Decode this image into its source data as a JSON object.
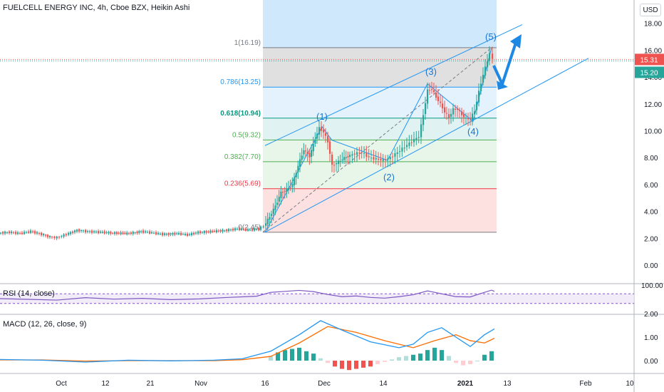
{
  "title": "FUELCELL ENERGY INC, 4h, Cboe BZX, Heikin Ashi",
  "currency": "USD",
  "colors": {
    "up": "#26a69a",
    "down": "#ef5350",
    "channel": "#2196f3",
    "rsi": "#7e57c2",
    "macd": "#2196f3",
    "signal": "#ff6d00",
    "fib_1": "#787b86",
    "fib_0786": "#2196f3",
    "fib_0618": "#089981",
    "fib_05": "#4caf50",
    "fib_0382": "#4caf50",
    "fib_0236": "#f23645",
    "fib_0": "#787b86"
  },
  "price_axis": {
    "ticks": [
      "18.00",
      "16.00",
      "14.00",
      "12.00",
      "10.00",
      "8.00",
      "6.00",
      "4.00",
      "2.00",
      "0.00"
    ],
    "last_price": "15.31",
    "prev_price": "15.20"
  },
  "rsi_axis": {
    "ticks": [
      "100.00",
      "2.00"
    ]
  },
  "macd_axis": {
    "ticks": [
      "1.00",
      "0.00"
    ]
  },
  "time_axis": [
    "Oct",
    "12",
    "21",
    "Nov",
    "16",
    "Dec",
    "14",
    "2021",
    "13",
    "Feb",
    "10"
  ],
  "fib_levels": [
    {
      "ratio": 1,
      "label": "1(16.19)",
      "price": 16.19
    },
    {
      "ratio": 0.786,
      "label": "0.786(13.25)",
      "price": 13.25
    },
    {
      "ratio": 0.618,
      "label": "0.618(10.94)",
      "price": 10.94
    },
    {
      "ratio": 0.5,
      "label": "0.5(9.32)",
      "price": 9.32
    },
    {
      "ratio": 0.382,
      "label": "0.382(7.70)",
      "price": 7.7
    },
    {
      "ratio": 0.236,
      "label": "0.236(5.69)",
      "price": 5.69
    },
    {
      "ratio": 0,
      "label": "0(2.45)",
      "price": 2.45
    }
  ],
  "waves": [
    "(1)",
    "(2)",
    "(3)",
    "(4)",
    "(5)"
  ],
  "indicators": {
    "rsi": "RSI (14, close)",
    "macd": "MACD (12, 26, close, 9)"
  },
  "chart_data": {
    "type": "candlestick",
    "title": "FUELCELL ENERGY INC, 4h, Cboe BZX, Heikin Ashi",
    "ylim": [
      -1,
      19
    ],
    "price_trend": [
      [
        0,
        2.4
      ],
      [
        15,
        2.45
      ],
      [
        30,
        2.35
      ],
      [
        45,
        2.5
      ],
      [
        60,
        2.3
      ],
      [
        72,
        2.1
      ],
      [
        82,
        2.05
      ],
      [
        95,
        2.3
      ],
      [
        110,
        2.6
      ],
      [
        125,
        2.5
      ],
      [
        140,
        2.45
      ],
      [
        160,
        2.4
      ],
      [
        180,
        2.35
      ],
      [
        200,
        2.5
      ],
      [
        215,
        2.4
      ],
      [
        230,
        2.3
      ],
      [
        250,
        2.35
      ],
      [
        265,
        2.25
      ],
      [
        280,
        2.45
      ],
      [
        300,
        2.5
      ],
      [
        320,
        2.6
      ],
      [
        335,
        2.7
      ],
      [
        350,
        2.6
      ],
      [
        365,
        2.7
      ],
      [
        372,
        2.9
      ],
      [
        380,
        3.6
      ],
      [
        388,
        4.4
      ],
      [
        396,
        5.4
      ],
      [
        404,
        5.6
      ],
      [
        412,
        6.0
      ],
      [
        420,
        7.4
      ],
      [
        428,
        8.6
      ],
      [
        436,
        8.1
      ],
      [
        444,
        9.4
      ],
      [
        450,
        10.2
      ],
      [
        456,
        9.9
      ],
      [
        462,
        9.2
      ],
      [
        468,
        7.4
      ],
      [
        474,
        7.6
      ],
      [
        482,
        7.9
      ],
      [
        490,
        8.1
      ],
      [
        500,
        8.3
      ],
      [
        510,
        8.4
      ],
      [
        520,
        8.0
      ],
      [
        530,
        7.9
      ],
      [
        540,
        7.8
      ],
      [
        550,
        8.0
      ],
      [
        560,
        8.4
      ],
      [
        570,
        8.8
      ],
      [
        580,
        9.2
      ],
      [
        590,
        9.6
      ],
      [
        596,
        11.2
      ],
      [
        602,
        13.0
      ],
      [
        608,
        13.1
      ],
      [
        614,
        12.5
      ],
      [
        620,
        12.0
      ],
      [
        626,
        11.4
      ],
      [
        632,
        11.0
      ],
      [
        638,
        11.6
      ],
      [
        644,
        11.6
      ],
      [
        650,
        11.2
      ],
      [
        656,
        10.9
      ],
      [
        662,
        10.9
      ],
      [
        668,
        11.5
      ],
      [
        674,
        12.9
      ],
      [
        680,
        14.2
      ],
      [
        686,
        15.2
      ],
      [
        690,
        15.8
      ],
      [
        694,
        15.3
      ]
    ],
    "rsi_trend": [
      [
        0,
        50
      ],
      [
        40,
        47
      ],
      [
        80,
        44
      ],
      [
        120,
        54
      ],
      [
        160,
        48
      ],
      [
        200,
        51
      ],
      [
        240,
        46
      ],
      [
        280,
        49
      ],
      [
        320,
        55
      ],
      [
        360,
        60
      ],
      [
        380,
        76
      ],
      [
        400,
        80
      ],
      [
        420,
        84
      ],
      [
        440,
        79
      ],
      [
        460,
        67
      ],
      [
        480,
        58
      ],
      [
        500,
        61
      ],
      [
        520,
        55
      ],
      [
        540,
        52
      ],
      [
        560,
        58
      ],
      [
        580,
        66
      ],
      [
        600,
        82
      ],
      [
        620,
        70
      ],
      [
        640,
        58
      ],
      [
        660,
        57
      ],
      [
        680,
        76
      ],
      [
        690,
        85
      ],
      [
        694,
        80
      ]
    ],
    "macd_line": [
      [
        0,
        0.05
      ],
      [
        60,
        0.02
      ],
      [
        120,
        -0.06
      ],
      [
        180,
        0.02
      ],
      [
        240,
        -0.01
      ],
      [
        300,
        0.02
      ],
      [
        340,
        0.08
      ],
      [
        380,
        0.4
      ],
      [
        420,
        1.1
      ],
      [
        450,
        1.7
      ],
      [
        480,
        1.3
      ],
      [
        520,
        0.8
      ],
      [
        560,
        0.55
      ],
      [
        580,
        0.7
      ],
      [
        600,
        1.2
      ],
      [
        620,
        1.4
      ],
      [
        640,
        1.0
      ],
      [
        660,
        0.6
      ],
      [
        680,
        1.1
      ],
      [
        694,
        1.35
      ]
    ],
    "signal_line": [
      [
        0,
        0.03
      ],
      [
        60,
        0.03
      ],
      [
        120,
        -0.02
      ],
      [
        180,
        0.0
      ],
      [
        240,
        0.0
      ],
      [
        300,
        0.0
      ],
      [
        340,
        0.04
      ],
      [
        380,
        0.18
      ],
      [
        420,
        0.75
      ],
      [
        460,
        1.45
      ],
      [
        500,
        1.2
      ],
      [
        540,
        0.85
      ],
      [
        580,
        0.55
      ],
      [
        610,
        0.85
      ],
      [
        640,
        1.1
      ],
      [
        660,
        0.85
      ],
      [
        680,
        0.75
      ],
      [
        694,
        0.95
      ]
    ],
    "histogram": [
      [
        380,
        0.2
      ],
      [
        390,
        0.35
      ],
      [
        400,
        0.45
      ],
      [
        410,
        0.5
      ],
      [
        420,
        0.55
      ],
      [
        430,
        0.4
      ],
      [
        440,
        0.3
      ],
      [
        450,
        0.1
      ],
      [
        460,
        -0.1
      ],
      [
        470,
        -0.25
      ],
      [
        480,
        -0.35
      ],
      [
        490,
        -0.4
      ],
      [
        500,
        -0.35
      ],
      [
        510,
        -0.3
      ],
      [
        520,
        -0.25
      ],
      [
        530,
        -0.15
      ],
      [
        540,
        -0.05
      ],
      [
        550,
        0.05
      ],
      [
        560,
        0.15
      ],
      [
        570,
        0.2
      ],
      [
        580,
        0.25
      ],
      [
        590,
        0.3
      ],
      [
        600,
        0.45
      ],
      [
        610,
        0.55
      ],
      [
        620,
        0.45
      ],
      [
        630,
        0.2
      ],
      [
        640,
        -0.1
      ],
      [
        650,
        -0.2
      ],
      [
        660,
        -0.15
      ],
      [
        670,
        0.0
      ],
      [
        680,
        0.25
      ],
      [
        690,
        0.4
      ]
    ]
  }
}
